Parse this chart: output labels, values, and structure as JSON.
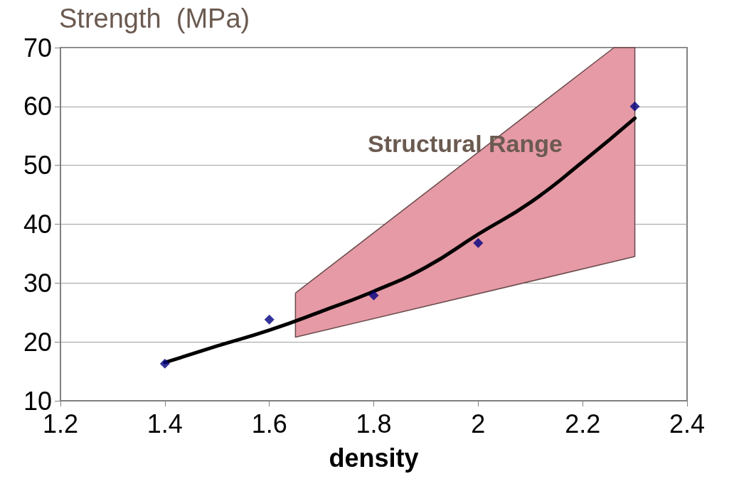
{
  "chart_data": {
    "type": "scatter",
    "ylabel": "Strength  (MPa)",
    "xlabel": "density",
    "annotations": [
      "Structural Range"
    ],
    "xlim": [
      1.2,
      2.4
    ],
    "xticks": [
      1.2,
      1.4,
      1.6,
      1.8,
      2,
      2.2,
      2.4
    ],
    "ylim": [
      10,
      70
    ],
    "yticks": [
      10,
      20,
      30,
      40,
      50,
      60,
      70
    ],
    "grid": "y",
    "series": [
      {
        "type": "area",
        "color": "#e59aa6",
        "x": [
          1.65,
          2.26,
          2.3,
          2.3,
          1.65,
          1.65
        ],
        "values": [
          28.3,
          70,
          70,
          34.5,
          20.8,
          28.3
        ]
      },
      {
        "type": "line",
        "color": "#000000",
        "marker": "none",
        "x": [
          1.4,
          1.5,
          1.6,
          1.7,
          1.8,
          1.9,
          2.0,
          2.1,
          2.2,
          2.3
        ],
        "values": [
          16.5,
          19.3,
          22,
          25.2,
          28.6,
          32.7,
          38.3,
          43.7,
          50.6,
          58
        ]
      },
      {
        "color": "#000080",
        "marker": "diamond",
        "x": [
          1.4,
          1.6,
          1.8,
          2.0,
          2.3
        ],
        "values": [
          16.3,
          23.8,
          27.9,
          36.8,
          60
        ]
      }
    ]
  }
}
